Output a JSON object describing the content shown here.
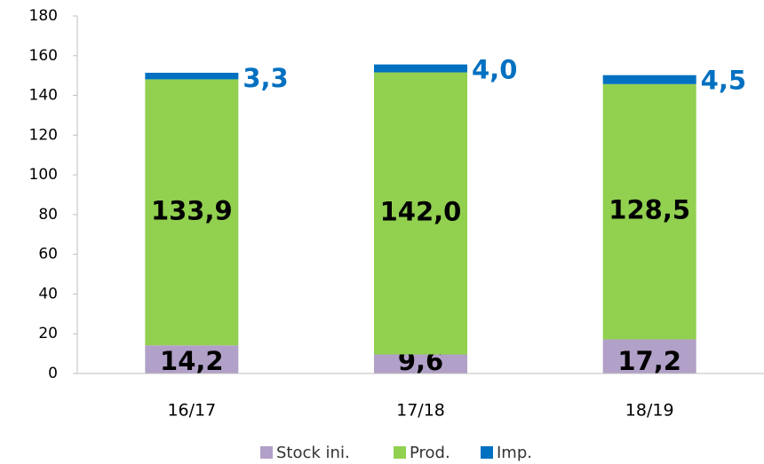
{
  "chart_data": {
    "type": "stacked_bar",
    "categories": [
      "16/17",
      "17/18",
      "18/19"
    ],
    "series": [
      {
        "name": "Stock ini.",
        "color": "#b1a0c7",
        "values": [
          14.2,
          9.6,
          17.2
        ],
        "value_labels": [
          "14,2",
          "9,6",
          "17,2"
        ]
      },
      {
        "name": "Prod.",
        "color": "#92d050",
        "values": [
          133.9,
          142.0,
          128.5
        ],
        "value_labels": [
          "133,9",
          "142,0",
          "128,5"
        ]
      },
      {
        "name": "Imp.",
        "color": "#0070c0",
        "values": [
          3.3,
          4.0,
          4.5
        ],
        "value_labels": [
          "3,3",
          "4,0",
          "4,5"
        ]
      }
    ],
    "ylim": [
      0,
      180
    ],
    "yticks": [
      0,
      20,
      40,
      60,
      80,
      100,
      120,
      140,
      160,
      180
    ],
    "legend": "bottom",
    "grid": false
  }
}
